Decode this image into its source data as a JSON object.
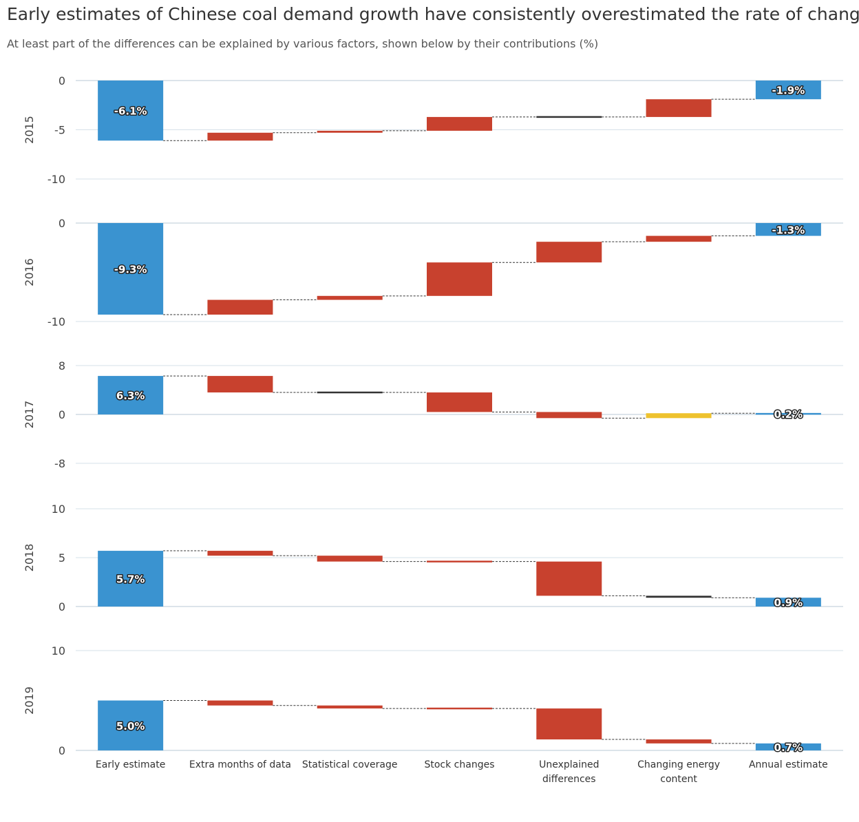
{
  "chart_data": {
    "type": "waterfall",
    "title": "Early estimates of Chinese coal demand growth have consistently overestimated the rate of change",
    "subtitle": "At least part of the differences can be explained by various factors, shown below by their contributions (%)",
    "categories": [
      "Early estimate",
      "Extra months of data",
      "Statistical coverage",
      "Stock changes",
      "Unexplained differences",
      "Changing energy content",
      "Annual estimate"
    ],
    "panels": [
      {
        "name": "2015",
        "ylim": [
          -10,
          0
        ],
        "yticks": [
          -10,
          -5,
          0
        ],
        "values": [
          -6.1,
          0.8,
          0.2,
          1.4,
          0,
          1.8,
          -1.9
        ],
        "value_labels": [
          "-6.1%",
          null,
          null,
          null,
          null,
          null,
          "-1.9%"
        ],
        "colors": [
          "#3a93d0",
          "#c8412e",
          "#c8412e",
          "#c8412e",
          "#333333",
          "#c8412e",
          "#3a93d0"
        ]
      },
      {
        "name": "2016",
        "ylim": [
          -10,
          0
        ],
        "yticks": [
          -10,
          0
        ],
        "values": [
          -9.3,
          1.5,
          0.4,
          3.4,
          2.1,
          0.6,
          -1.3
        ],
        "value_labels": [
          "-9.3%",
          null,
          null,
          null,
          null,
          null,
          "-1.3%"
        ],
        "colors": [
          "#3a93d0",
          "#c8412e",
          "#c8412e",
          "#c8412e",
          "#c8412e",
          "#c8412e",
          "#3a93d0"
        ]
      },
      {
        "name": "2017",
        "ylim": [
          -8,
          8
        ],
        "yticks": [
          -8,
          0,
          8
        ],
        "values": [
          6.3,
          -2.7,
          0,
          -3.2,
          -1.0,
          0.8,
          0.2
        ],
        "value_labels": [
          "6.3%",
          null,
          null,
          null,
          null,
          null,
          "0.2%"
        ],
        "colors": [
          "#3a93d0",
          "#c8412e",
          "#333333",
          "#c8412e",
          "#c8412e",
          "#eec22e",
          "#3a93d0"
        ]
      },
      {
        "name": "2018",
        "ylim": [
          0,
          10
        ],
        "yticks": [
          0,
          5,
          10
        ],
        "values": [
          5.7,
          -0.5,
          -0.6,
          0,
          -3.5,
          -0.2,
          0.9
        ],
        "value_labels": [
          "5.7%",
          null,
          null,
          null,
          null,
          null,
          "0.9%"
        ],
        "colors": [
          "#3a93d0",
          "#c8412e",
          "#c8412e",
          "#c8412e",
          "#c8412e",
          "#333333",
          "#3a93d0"
        ]
      },
      {
        "name": "2019",
        "ylim": [
          0,
          10
        ],
        "yticks": [
          0,
          10
        ],
        "values": [
          5.0,
          -0.5,
          -0.3,
          0,
          -3.1,
          -0.4,
          0.7
        ],
        "value_labels": [
          "5.0%",
          null,
          null,
          null,
          null,
          null,
          "0.7%"
        ],
        "colors": [
          "#3a93d0",
          "#c8412e",
          "#c8412e",
          "#c8412e",
          "#c8412e",
          "#c8412e",
          "#3a93d0"
        ]
      }
    ]
  }
}
